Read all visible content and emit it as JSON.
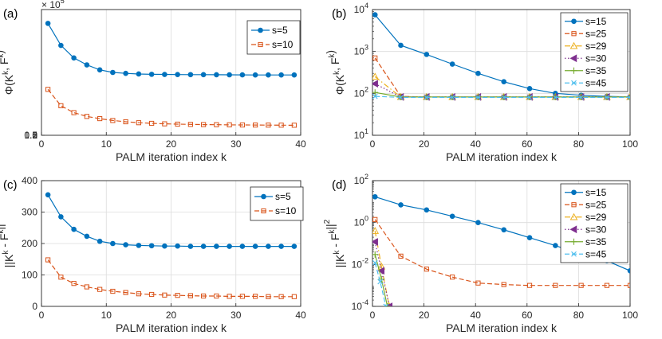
{
  "colors": {
    "blue": "#0072BD",
    "orange": "#D95319",
    "yellow": "#EDB120",
    "purple": "#7E2F8E",
    "green": "#77AC30",
    "cyan": "#4DBEEE"
  },
  "chart_data": [
    {
      "panel_label": "(a)",
      "type": "line",
      "xlabel": "PALM iteration index k",
      "ylabel": "Φ(K^k, F^k)",
      "y_exponent_label": "× 10^5",
      "y_scale_factor": 100000,
      "xlim": [
        0,
        40
      ],
      "ylim": [
        0,
        200000
      ],
      "xticks": [
        0,
        10,
        20,
        30,
        40
      ],
      "yticks": [
        0,
        0.5,
        1,
        1.5,
        2
      ],
      "grid": true,
      "legend_position": "top-right",
      "series": [
        {
          "name": "s=5",
          "color": "blue",
          "marker": "circle",
          "dash": "solid",
          "x": [
            1,
            3,
            5,
            7,
            9,
            11,
            13,
            15,
            17,
            19,
            21,
            23,
            25,
            27,
            29,
            31,
            33,
            35,
            37,
            39
          ],
          "y": [
            178000,
            143000,
            123000,
            112000,
            104000,
            100000,
            98500,
            97500,
            97000,
            96800,
            96600,
            96500,
            96400,
            96300,
            96200,
            96100,
            96000,
            96000,
            96000,
            96000
          ]
        },
        {
          "name": "s=10",
          "color": "orange",
          "marker": "square",
          "dash": "dashed",
          "x": [
            1,
            3,
            5,
            7,
            9,
            11,
            13,
            15,
            17,
            19,
            21,
            23,
            25,
            27,
            29,
            31,
            33,
            35,
            37,
            39
          ],
          "y": [
            73000,
            47000,
            36000,
            30000,
            26500,
            23500,
            21500,
            20000,
            19000,
            18200,
            17700,
            17300,
            17000,
            16800,
            16600,
            16400,
            16300,
            16200,
            16100,
            16000
          ]
        }
      ]
    },
    {
      "panel_label": "(b)",
      "type": "line",
      "xlabel": "PALM iteration index k",
      "ylabel": "Φ(K^k, F^k)",
      "yscale": "log",
      "xlim": [
        0,
        100
      ],
      "ylim": [
        10,
        10000
      ],
      "xticks": [
        0,
        20,
        40,
        60,
        80,
        100
      ],
      "yticks": [
        10,
        100,
        1000,
        10000
      ],
      "ytick_labels": [
        "10^1",
        "10^2",
        "10^3",
        "10^4"
      ],
      "grid": true,
      "legend_position": "top-right",
      "series": [
        {
          "name": "s=15",
          "color": "blue",
          "marker": "circle",
          "dash": "solid",
          "x": [
            1,
            11,
            21,
            31,
            41,
            51,
            61,
            71,
            81,
            91,
            100
          ],
          "y": [
            7500,
            1400,
            850,
            500,
            300,
            190,
            130,
            100,
            90,
            85,
            82
          ]
        },
        {
          "name": "s=25",
          "color": "orange",
          "marker": "square",
          "dash": "dashed",
          "x": [
            1,
            11,
            21,
            31,
            41,
            51,
            61,
            71,
            81,
            91,
            100
          ],
          "y": [
            700,
            85,
            82,
            82,
            82,
            82,
            82,
            82,
            82,
            82,
            82
          ]
        },
        {
          "name": "s=29",
          "color": "yellow",
          "marker": "triangle",
          "dash": "dashdot",
          "x": [
            1,
            11,
            21,
            31,
            41,
            51,
            61,
            71,
            81,
            91,
            100
          ],
          "y": [
            250,
            82,
            82,
            82,
            82,
            82,
            82,
            82,
            82,
            82,
            82
          ]
        },
        {
          "name": "s=30",
          "color": "purple",
          "marker": "triangle-left",
          "dash": "dotted",
          "x": [
            1,
            11,
            21,
            31,
            41,
            51,
            61,
            71,
            81,
            91,
            100
          ],
          "y": [
            170,
            82,
            82,
            82,
            82,
            82,
            82,
            82,
            82,
            82,
            82
          ]
        },
        {
          "name": "s=35",
          "color": "green",
          "marker": "plus",
          "dash": "solid",
          "x": [
            1,
            11,
            21,
            31,
            41,
            51,
            61,
            71,
            81,
            91,
            100
          ],
          "y": [
            105,
            82,
            82,
            82,
            82,
            82,
            82,
            82,
            82,
            82,
            82
          ]
        },
        {
          "name": "s=45",
          "color": "cyan",
          "marker": "x",
          "dash": "dashed",
          "x": [
            1,
            11,
            21,
            31,
            41,
            51,
            61,
            71,
            81,
            91,
            100
          ],
          "y": [
            85,
            80,
            80,
            80,
            80,
            80,
            80,
            80,
            80,
            80,
            80
          ]
        }
      ]
    },
    {
      "panel_label": "(c)",
      "type": "line",
      "xlabel": "PALM iteration index k",
      "ylabel": "||K^k - F^k||^2",
      "xlim": [
        0,
        40
      ],
      "ylim": [
        0,
        400
      ],
      "xticks": [
        0,
        10,
        20,
        30,
        40
      ],
      "yticks": [
        0,
        100,
        200,
        300,
        400
      ],
      "grid": true,
      "legend_position": "top-right",
      "series": [
        {
          "name": "s=5",
          "color": "blue",
          "marker": "circle",
          "dash": "solid",
          "x": [
            1,
            3,
            5,
            7,
            9,
            11,
            13,
            15,
            17,
            19,
            21,
            23,
            25,
            27,
            29,
            31,
            33,
            35,
            37,
            39
          ],
          "y": [
            355,
            285,
            245,
            223,
            207,
            200,
            196,
            194,
            193,
            192,
            192,
            191,
            191,
            191,
            191,
            191,
            191,
            191,
            191,
            191
          ]
        },
        {
          "name": "s=10",
          "color": "orange",
          "marker": "square",
          "dash": "dashed",
          "x": [
            1,
            3,
            5,
            7,
            9,
            11,
            13,
            15,
            17,
            19,
            21,
            23,
            25,
            27,
            29,
            31,
            33,
            35,
            37,
            39
          ],
          "y": [
            148,
            93,
            73,
            62,
            54,
            48,
            44,
            40,
            38,
            36,
            35,
            34,
            33,
            33,
            32,
            32,
            32,
            31,
            31,
            31
          ]
        }
      ]
    },
    {
      "panel_label": "(d)",
      "type": "line",
      "xlabel": "PALM iteration index k",
      "ylabel": "||K^k - F^k||^2",
      "yscale": "log",
      "xlim": [
        0,
        100
      ],
      "ylim": [
        0.0001,
        100
      ],
      "xticks": [
        0,
        20,
        40,
        60,
        80,
        100
      ],
      "yticks": [
        0.0001,
        0.01,
        1,
        100
      ],
      "ytick_labels": [
        "10^-4",
        "10^-2",
        "10^0",
        "10^2"
      ],
      "grid": true,
      "legend_position": "top-right",
      "series": [
        {
          "name": "s=15",
          "color": "blue",
          "marker": "circle",
          "dash": "solid",
          "x": [
            1,
            11,
            21,
            31,
            41,
            51,
            61,
            71,
            81,
            91,
            100
          ],
          "y": [
            17,
            7,
            4,
            2,
            1,
            0.45,
            0.19,
            0.08,
            0.03,
            0.015,
            0.005
          ]
        },
        {
          "name": "s=25",
          "color": "orange",
          "marker": "square",
          "dash": "dashed",
          "x": [
            1,
            11,
            21,
            31,
            41,
            51,
            61,
            71,
            81,
            91,
            100
          ],
          "y": [
            1.4,
            0.025,
            0.006,
            0.0025,
            0.0013,
            0.0011,
            0.001,
            0.001,
            0.001,
            0.001,
            0.001
          ]
        },
        {
          "name": "s=29",
          "color": "yellow",
          "marker": "triangle",
          "dash": "dashdot",
          "x": [
            1,
            3.5,
            6.5
          ],
          "y": [
            0.4,
            0.008,
            0.0001
          ]
        },
        {
          "name": "s=30",
          "color": "purple",
          "marker": "triangle-left",
          "dash": "dotted",
          "x": [
            1,
            3.5,
            6.6
          ],
          "y": [
            0.12,
            0.005,
            0.0001
          ]
        },
        {
          "name": "s=35",
          "color": "green",
          "marker": "plus",
          "dash": "solid",
          "x": [
            1,
            3.5,
            5.8
          ],
          "y": [
            0.03,
            0.002,
            0.0001
          ]
        },
        {
          "name": "s=45",
          "color": "cyan",
          "marker": "x",
          "dash": "dashed",
          "x": [
            1,
            3,
            5.2
          ],
          "y": [
            0.012,
            0.0015,
            0.0001
          ]
        }
      ]
    }
  ]
}
